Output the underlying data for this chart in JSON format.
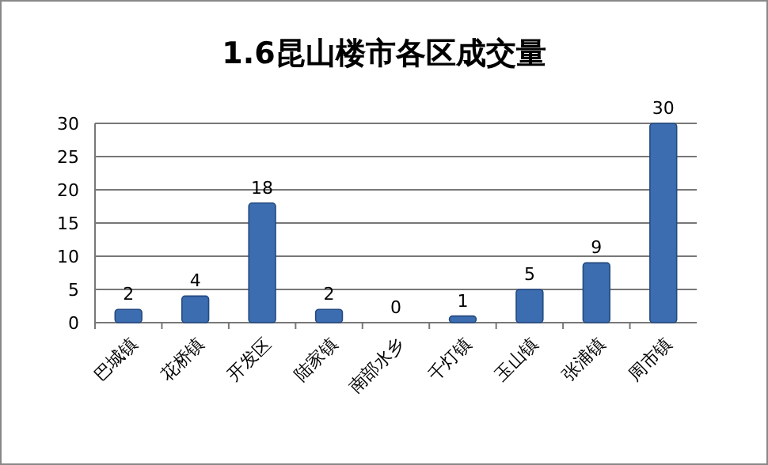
{
  "chart_data": {
    "type": "bar",
    "title": "1.6昆山楼市各区成交量",
    "categories": [
      "巴城镇",
      "花桥镇",
      "开发区",
      "陆家镇",
      "南部水乡",
      "千灯镇",
      "玉山镇",
      "张浦镇",
      "周市镇"
    ],
    "values": [
      2,
      4,
      18,
      2,
      0,
      1,
      5,
      9,
      30
    ],
    "color": "#3c6db0",
    "ylim": [
      0,
      30
    ],
    "yticks": [
      0,
      5,
      10,
      15,
      20,
      25,
      30
    ],
    "grid": "y",
    "data_labels": true
  }
}
